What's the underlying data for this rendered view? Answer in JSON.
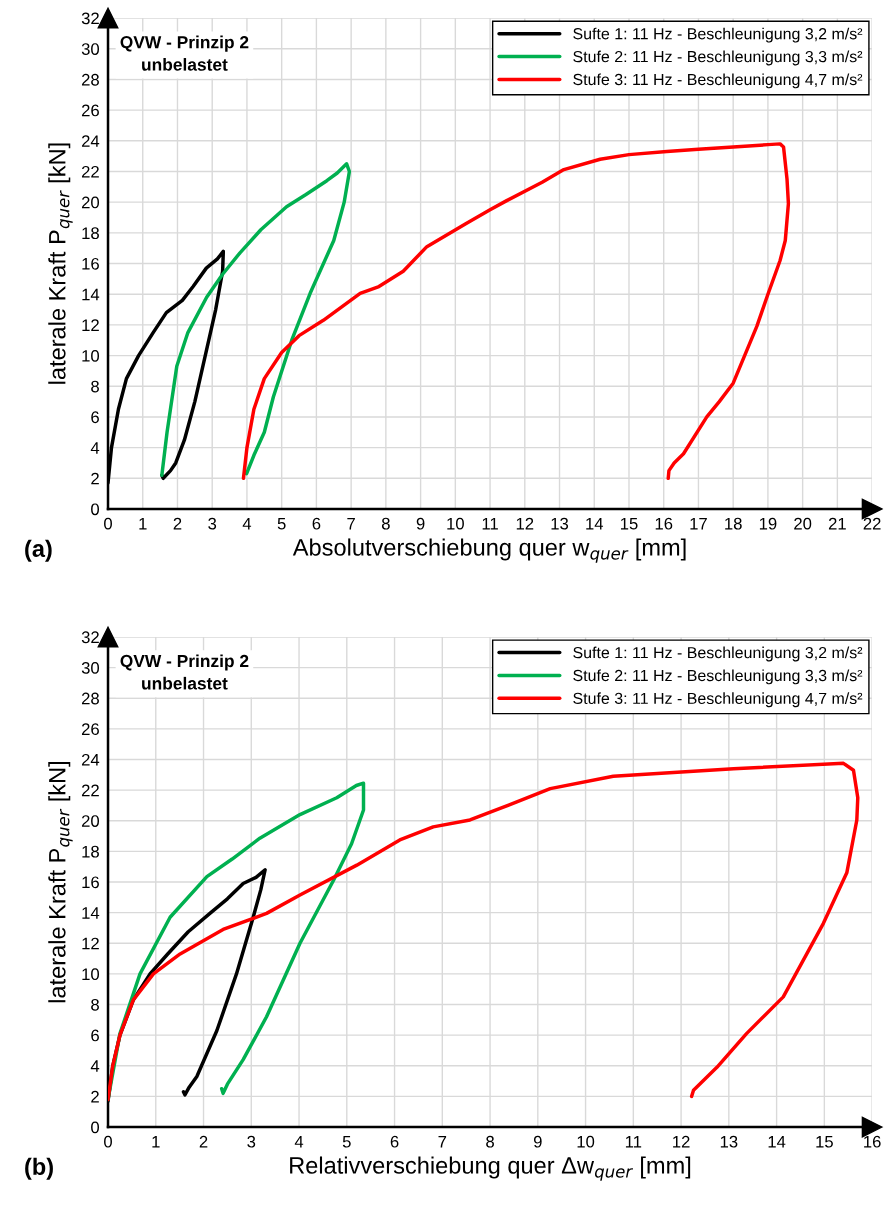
{
  "chart_data": [
    {
      "type": "line",
      "xlabel": "Absolutverschiebung quer w$_{quer}$ [mm]",
      "ylabel": "laterale Kraft P$_{quer}$ [kN]",
      "annotations": [
        "QVW - Prinzip 2\nunbelastet",
        "(a)"
      ],
      "xlim": [
        0,
        22
      ],
      "xticks": [
        0,
        1,
        2,
        3,
        4,
        5,
        6,
        7,
        8,
        9,
        10,
        11,
        12,
        13,
        14,
        15,
        16,
        17,
        18,
        19,
        20,
        21,
        22
      ],
      "ylim": [
        0,
        32
      ],
      "yticks": [
        0,
        2,
        4,
        6,
        8,
        10,
        12,
        14,
        16,
        18,
        20,
        22,
        24,
        26,
        28,
        30,
        32
      ],
      "grid": true,
      "legend": "top right",
      "series": [
        {
          "name": "Sufte 1: 11 Hz - Beschleunigung 3,2 m/s²",
          "color": "#000000",
          "x": [
            0,
            0.1,
            0.3,
            0.53,
            0.88,
            1.3,
            1.68,
            2.14,
            2.45,
            2.83,
            3.15,
            3.32,
            3.3,
            3.1,
            2.8,
            2.5,
            2.2,
            1.95,
            1.8,
            1.59,
            1.55
          ],
          "values": [
            1.7,
            4,
            6.5,
            8.5,
            10,
            11.5,
            12.8,
            13.6,
            14.5,
            15.7,
            16.3,
            16.8,
            15.5,
            13,
            10,
            7,
            4.5,
            3,
            2.5,
            2.0,
            2.2
          ]
        },
        {
          "name": "Stufe 2: 11 Hz - Beschleunigung 3,3 m/s²",
          "color": "#00b050",
          "x": [
            1.55,
            1.7,
            1.98,
            2.3,
            2.84,
            3.3,
            3.8,
            4.4,
            5.14,
            5.7,
            6.3,
            6.6,
            6.87,
            6.95,
            6.8,
            6.5,
            5.82,
            5.29,
            4.76,
            4.5,
            4.2,
            3.99
          ],
          "values": [
            2.2,
            5,
            9.3,
            11.5,
            13.8,
            15.3,
            16.7,
            18.2,
            19.7,
            20.5,
            21.4,
            21.9,
            22.5,
            22,
            20,
            17.5,
            14.06,
            11,
            7.3,
            5,
            3.5,
            2.3
          ]
        },
        {
          "name": "Stufe 3: 11 Hz - Beschleunigung 4,7 m/s²",
          "color": "#ff0000",
          "x": [
            3.9,
            4.0,
            4.2,
            4.5,
            5.0,
            5.5,
            6.2,
            7.26,
            7.8,
            8.5,
            9.18,
            10.3,
            11.0,
            11.48,
            12.5,
            13.1,
            14.17,
            15.0,
            16.09,
            17.0,
            18.0,
            19.0,
            19.35,
            19.45,
            19.55,
            19.59,
            19.5,
            19.35,
            19.0,
            18.68,
            18.0,
            17.6,
            17.24,
            16.57,
            16.3,
            16.15,
            16.13
          ],
          "values": [
            2,
            4,
            6.5,
            8.5,
            10.2,
            11.3,
            12.3,
            14.06,
            14.5,
            15.5,
            17.1,
            18.6,
            19.5,
            20.1,
            21.3,
            22.1,
            22.8,
            23.1,
            23.3,
            23.45,
            23.6,
            23.75,
            23.8,
            23.6,
            21.5,
            19.9,
            17.5,
            16.2,
            14,
            11.9,
            8.2,
            7,
            6,
            3.6,
            3,
            2.5,
            2.0
          ]
        }
      ]
    },
    {
      "type": "line",
      "xlabel": "Relativverschiebung quer Δw$_{quer}$ [mm]",
      "ylabel": "laterale Kraft P$_{quer}$ [kN]",
      "annotations": [
        "QVW - Prinzip 2\nunbelastet",
        "(b)"
      ],
      "xlim": [
        0,
        16
      ],
      "xticks": [
        0,
        1,
        2,
        3,
        4,
        5,
        6,
        7,
        8,
        9,
        10,
        11,
        12,
        13,
        14,
        15,
        16
      ],
      "ylim": [
        0,
        32
      ],
      "yticks": [
        0,
        2,
        4,
        6,
        8,
        10,
        12,
        14,
        16,
        18,
        20,
        22,
        24,
        26,
        28,
        30,
        32
      ],
      "grid": true,
      "legend": "top right",
      "series": [
        {
          "name": "Sufte 1: 11 Hz - Beschleunigung 3,2 m/s²",
          "color": "#000000",
          "x": [
            0,
            0.1,
            0.25,
            0.53,
            0.88,
            1.25,
            1.68,
            2.14,
            2.5,
            2.83,
            3.1,
            3.29,
            3.2,
            3.04,
            2.69,
            2.28,
            1.86,
            1.7,
            1.61,
            1.58
          ],
          "values": [
            1.7,
            4,
            6,
            8.3,
            10,
            11.3,
            12.75,
            13.97,
            14.9,
            15.9,
            16.3,
            16.8,
            15.5,
            13.7,
            10,
            6.3,
            3.3,
            2.6,
            2.1,
            2.3
          ]
        },
        {
          "name": "Stufe 2: 11 Hz - Beschleunigung 3,3 m/s²",
          "color": "#00b050",
          "x": [
            0,
            0.25,
            0.67,
            1.3,
            2.07,
            2.6,
            3.18,
            4.02,
            4.79,
            5.2,
            5.35,
            5.35,
            5.1,
            4.72,
            4.02,
            3.32,
            2.83,
            2.5,
            2.41,
            2.38
          ],
          "values": [
            1.8,
            6.1,
            10,
            13.7,
            16.35,
            17.5,
            18.86,
            20.4,
            21.5,
            22.3,
            22.45,
            20.7,
            18.5,
            16.1,
            12,
            7.2,
            4.4,
            2.8,
            2.2,
            2.5
          ]
        },
        {
          "name": "Stufe 3: 11 Hz - Beschleunigung 4,7 m/s²",
          "color": "#ff0000",
          "x": [
            0,
            0.1,
            0.25,
            0.53,
            0.95,
            1.51,
            2.41,
            3.32,
            4.02,
            5.21,
            6.11,
            6.81,
            7.58,
            8.21,
            9.26,
            10.58,
            13.1,
            15.4,
            15.61,
            15.7,
            15.68,
            15.47,
            14.98,
            14.14,
            13.37,
            12.75,
            12.26,
            12.22
          ],
          "values": [
            1.8,
            4,
            6,
            8.3,
            10,
            11.3,
            12.9,
            13.95,
            15.15,
            17.1,
            18.75,
            19.6,
            20.05,
            20.8,
            22.1,
            22.9,
            23.4,
            23.75,
            23.3,
            21.5,
            20.05,
            16.6,
            13.3,
            8.5,
            6.1,
            3.9,
            2.4,
            2.0
          ]
        }
      ]
    }
  ]
}
